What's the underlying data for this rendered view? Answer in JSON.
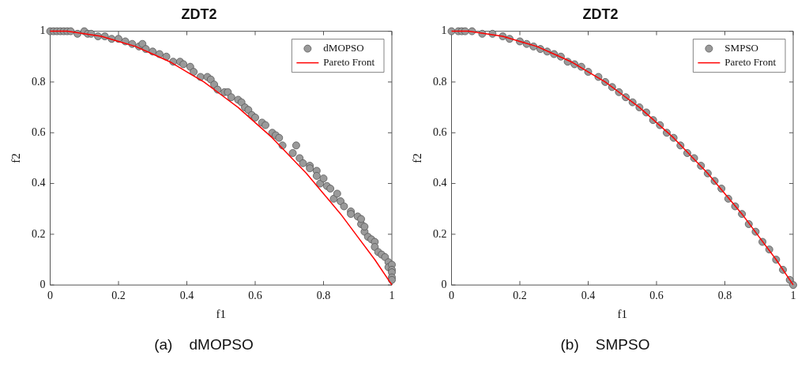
{
  "chart_data": [
    {
      "type": "scatter",
      "title": "ZDT2",
      "xlabel": "f1",
      "ylabel": "f2",
      "xlim": [
        0,
        1
      ],
      "ylim": [
        0,
        1
      ],
      "xticks": [
        0,
        0.2,
        0.4,
        0.6,
        0.8,
        1
      ],
      "yticks": [
        0,
        0.2,
        0.4,
        0.6,
        0.8,
        1
      ],
      "legend": "top right",
      "annotations": [
        "(a)    dMOPSO"
      ],
      "series": [
        {
          "name": "dMOPSO",
          "marker": "circle",
          "color": "#9a9a9a",
          "x": [
            0,
            0.01,
            0.02,
            0.03,
            0.04,
            0.05,
            0.06,
            0.08,
            0.1,
            0.11,
            0.12,
            0.14,
            0.16,
            0.18,
            0.2,
            0.22,
            0.24,
            0.26,
            0.27,
            0.28,
            0.3,
            0.32,
            0.34,
            0.36,
            0.38,
            0.39,
            0.41,
            0.42,
            0.44,
            0.46,
            0.47,
            0.48,
            0.49,
            0.51,
            0.52,
            0.53,
            0.55,
            0.56,
            0.57,
            0.58,
            0.59,
            0.6,
            0.62,
            0.63,
            0.65,
            0.66,
            0.67,
            0.68,
            0.71,
            0.72,
            0.73,
            0.74,
            0.76,
            0.76,
            0.78,
            0.78,
            0.79,
            0.8,
            0.81,
            0.82,
            0.83,
            0.84,
            0.85,
            0.86,
            0.88,
            0.88,
            0.9,
            0.91,
            0.91,
            0.92,
            0.92,
            0.93,
            0.94,
            0.95,
            0.95,
            0.96,
            0.97,
            0.98,
            0.99,
            0.99,
            1,
            1,
            1,
            1,
            1
          ],
          "values": [
            1,
            1,
            1,
            1,
            1,
            1,
            1,
            0.99,
            1,
            0.99,
            0.99,
            0.98,
            0.98,
            0.97,
            0.97,
            0.96,
            0.95,
            0.94,
            0.95,
            0.93,
            0.92,
            0.91,
            0.9,
            0.88,
            0.88,
            0.87,
            0.86,
            0.84,
            0.82,
            0.82,
            0.81,
            0.79,
            0.77,
            0.76,
            0.76,
            0.74,
            0.73,
            0.72,
            0.7,
            0.69,
            0.67,
            0.66,
            0.64,
            0.63,
            0.6,
            0.59,
            0.58,
            0.55,
            0.52,
            0.55,
            0.5,
            0.48,
            0.47,
            0.46,
            0.45,
            0.43,
            0.4,
            0.42,
            0.39,
            0.38,
            0.34,
            0.36,
            0.33,
            0.31,
            0.29,
            0.28,
            0.27,
            0.24,
            0.26,
            0.21,
            0.23,
            0.19,
            0.18,
            0.17,
            0.15,
            0.13,
            0.12,
            0.11,
            0.09,
            0.07,
            0.08,
            0.06,
            0.05,
            0.03,
            0.02
          ]
        },
        {
          "name": "Pareto Front",
          "type": "line",
          "color": "#ff0000",
          "line_style": "solid",
          "x": [
            0,
            0.05,
            0.1,
            0.15,
            0.2,
            0.25,
            0.3,
            0.35,
            0.4,
            0.45,
            0.5,
            0.55,
            0.6,
            0.65,
            0.7,
            0.75,
            0.8,
            0.85,
            0.9,
            0.95,
            1
          ],
          "values": [
            1,
            1,
            0.99,
            0.98,
            0.96,
            0.94,
            0.91,
            0.88,
            0.84,
            0.8,
            0.75,
            0.7,
            0.64,
            0.58,
            0.51,
            0.44,
            0.36,
            0.28,
            0.19,
            0.1,
            0
          ]
        }
      ]
    },
    {
      "type": "scatter",
      "title": "ZDT2",
      "xlabel": "f1",
      "ylabel": "f2",
      "xlim": [
        0,
        1
      ],
      "ylim": [
        0,
        1
      ],
      "xticks": [
        0,
        0.2,
        0.4,
        0.6,
        0.8,
        1
      ],
      "yticks": [
        0,
        0.2,
        0.4,
        0.6,
        0.8,
        1
      ],
      "legend": "top right",
      "annotations": [
        "(b)    SMPSO"
      ],
      "series": [
        {
          "name": "SMPSO",
          "marker": "circle",
          "color": "#9a9a9a",
          "x": [
            0,
            0.02,
            0.03,
            0.04,
            0.06,
            0.09,
            0.12,
            0.15,
            0.17,
            0.2,
            0.22,
            0.24,
            0.26,
            0.28,
            0.3,
            0.32,
            0.34,
            0.36,
            0.38,
            0.4,
            0.43,
            0.45,
            0.47,
            0.49,
            0.51,
            0.53,
            0.55,
            0.57,
            0.59,
            0.61,
            0.63,
            0.65,
            0.67,
            0.69,
            0.71,
            0.73,
            0.75,
            0.77,
            0.79,
            0.81,
            0.83,
            0.85,
            0.87,
            0.89,
            0.91,
            0.93,
            0.95,
            0.97,
            0.99,
            1
          ],
          "values": [
            1,
            1,
            1,
            1,
            1,
            0.99,
            0.99,
            0.98,
            0.97,
            0.96,
            0.95,
            0.94,
            0.93,
            0.92,
            0.91,
            0.9,
            0.88,
            0.87,
            0.86,
            0.84,
            0.82,
            0.8,
            0.78,
            0.76,
            0.74,
            0.72,
            0.7,
            0.68,
            0.65,
            0.63,
            0.6,
            0.58,
            0.55,
            0.52,
            0.5,
            0.47,
            0.44,
            0.41,
            0.38,
            0.34,
            0.31,
            0.28,
            0.24,
            0.21,
            0.17,
            0.14,
            0.1,
            0.06,
            0.02,
            0
          ]
        },
        {
          "name": "Pareto Front",
          "type": "line",
          "color": "#ff0000",
          "line_style": "solid",
          "x": [
            0,
            0.05,
            0.1,
            0.15,
            0.2,
            0.25,
            0.3,
            0.35,
            0.4,
            0.45,
            0.5,
            0.55,
            0.6,
            0.65,
            0.7,
            0.75,
            0.8,
            0.85,
            0.9,
            0.95,
            1
          ],
          "values": [
            1,
            1,
            0.99,
            0.98,
            0.96,
            0.94,
            0.91,
            0.88,
            0.84,
            0.8,
            0.75,
            0.7,
            0.64,
            0.58,
            0.51,
            0.44,
            0.36,
            0.28,
            0.19,
            0.1,
            0
          ]
        }
      ]
    }
  ]
}
